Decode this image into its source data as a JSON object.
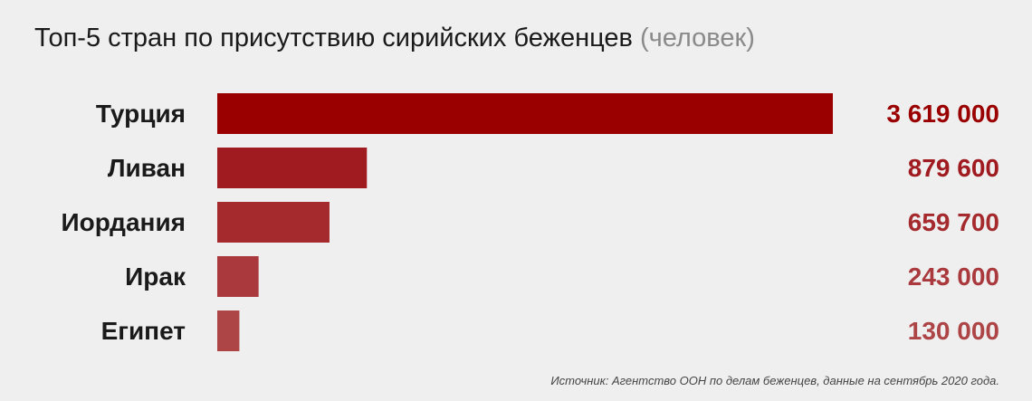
{
  "chart_data": {
    "type": "bar",
    "orientation": "horizontal",
    "title": "Топ-5 стран по присутствию сирийских беженцев",
    "title_unit": "(человек)",
    "categories": [
      "Турция",
      "Ливан",
      "Иордания",
      "Ирак",
      "Египет"
    ],
    "values": [
      3619000,
      879600,
      659700,
      243000,
      130000
    ],
    "value_labels": [
      "3 619 000",
      "879 600",
      "659 700",
      "243 000",
      "130 000"
    ],
    "bar_colors": [
      "#9b0000",
      "#a01b1f",
      "#a52a2d",
      "#a9393c",
      "#ad4446"
    ],
    "xlim": [
      0,
      3619000
    ],
    "grid": false,
    "legend": "none"
  },
  "source": "Источник: Агентство ООН по делам беженцев, данные на сентябрь 2020 года."
}
